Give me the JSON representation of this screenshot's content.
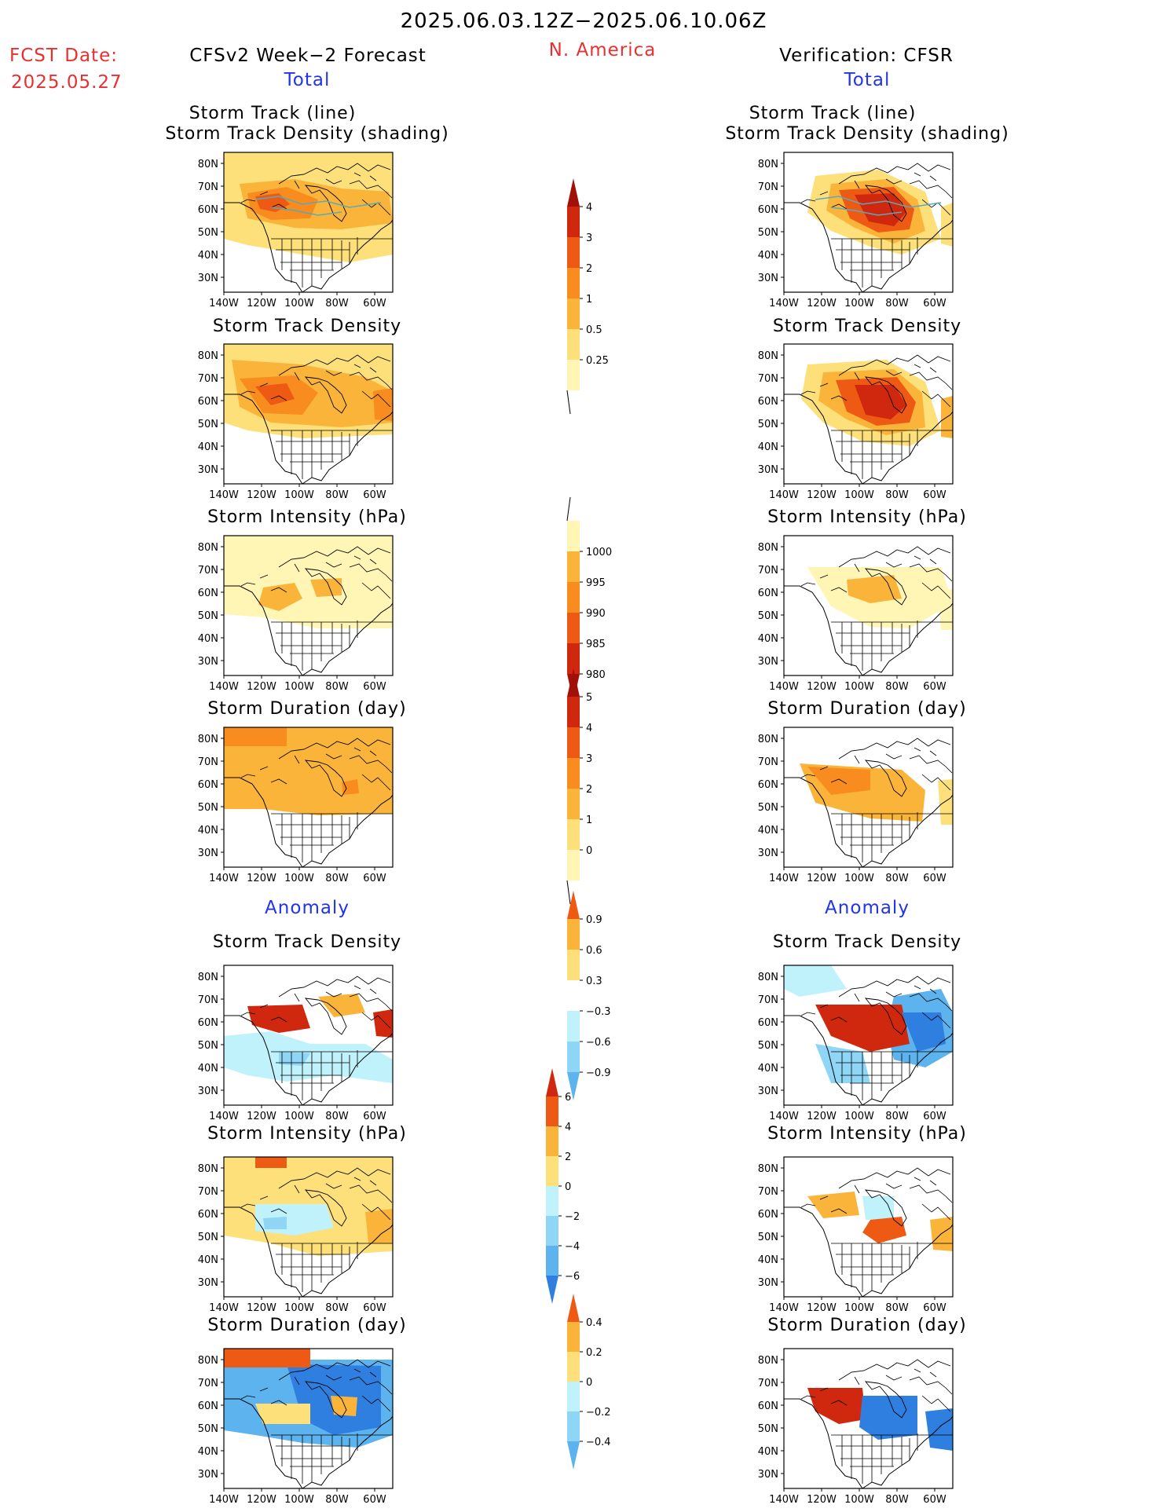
{
  "header": {
    "period": "2025.06.03.12Z−2025.06.10.06Z",
    "fcst_label": "FCST Date:",
    "fcst_date": "2025.05.27",
    "forecast_title": "CFSv2 Week−2 Forecast",
    "region": "N. America",
    "verification_title": "Verification: CFSR"
  },
  "sections": {
    "total_label": "Total",
    "anomaly_label": "Anomaly"
  },
  "panel_titles": {
    "track_line": "Storm Track (line)",
    "track_density_shading": "Storm Track Density (shading)",
    "track_density": "Storm Track Density",
    "intensity": "Storm Intensity (hPa)",
    "duration": "Storm Duration (day)"
  },
  "axes": {
    "lat_ticks": [
      "80N",
      "70N",
      "60N",
      "50N",
      "40N",
      "30N"
    ],
    "lon_ticks": [
      "140W",
      "120W",
      "100W",
      "80W",
      "60W"
    ]
  },
  "colors": {
    "warm": [
      "#fff5b4",
      "#fde07a",
      "#fbb43a",
      "#f88c1e",
      "#ee5a14",
      "#d0280e",
      "#a3100a"
    ],
    "cool": [
      "#bff2fa",
      "#8fd6f6",
      "#5cb3ee",
      "#2f7fe0",
      "#1a55c8"
    ],
    "map_line": "#000000",
    "track_line": "#5aaab8"
  },
  "chart_data": [
    {
      "type": "heatmap",
      "panel": "forecast-total-track",
      "title": "Storm Track (line) / Storm Track Density (shading)",
      "xlabel": "",
      "ylabel": "",
      "xlim": [
        -140,
        -50
      ],
      "ylim": [
        25,
        85
      ]
    },
    {
      "type": "heatmap",
      "panel": "verification-total-track",
      "title": "Storm Track (line) / Storm Track Density (shading)",
      "xlim": [
        -140,
        -50
      ],
      "ylim": [
        25,
        85
      ]
    },
    {
      "type": "heatmap",
      "panel": "forecast-total-density",
      "title": "Storm Track Density",
      "xlim": [
        -140,
        -50
      ],
      "ylim": [
        25,
        85
      ]
    },
    {
      "type": "heatmap",
      "panel": "verification-total-density",
      "title": "Storm Track Density",
      "xlim": [
        -140,
        -50
      ],
      "ylim": [
        25,
        85
      ]
    },
    {
      "type": "heatmap",
      "panel": "forecast-total-intensity",
      "title": "Storm Intensity (hPa)",
      "xlim": [
        -140,
        -50
      ],
      "ylim": [
        25,
        85
      ]
    },
    {
      "type": "heatmap",
      "panel": "verification-total-intensity",
      "title": "Storm Intensity (hPa)",
      "xlim": [
        -140,
        -50
      ],
      "ylim": [
        25,
        85
      ]
    },
    {
      "type": "heatmap",
      "panel": "forecast-total-duration",
      "title": "Storm Duration (day)",
      "xlim": [
        -140,
        -50
      ],
      "ylim": [
        25,
        85
      ]
    },
    {
      "type": "heatmap",
      "panel": "verification-total-duration",
      "title": "Storm Duration (day)",
      "xlim": [
        -140,
        -50
      ],
      "ylim": [
        25,
        85
      ]
    },
    {
      "type": "heatmap",
      "panel": "forecast-anomaly-density",
      "title": "Storm Track Density",
      "xlim": [
        -140,
        -50
      ],
      "ylim": [
        25,
        85
      ]
    },
    {
      "type": "heatmap",
      "panel": "verification-anomaly-density",
      "title": "Storm Track Density",
      "xlim": [
        -140,
        -50
      ],
      "ylim": [
        25,
        85
      ]
    },
    {
      "type": "heatmap",
      "panel": "forecast-anomaly-intensity",
      "title": "Storm Intensity (hPa)",
      "xlim": [
        -140,
        -50
      ],
      "ylim": [
        25,
        85
      ]
    },
    {
      "type": "heatmap",
      "panel": "verification-anomaly-intensity",
      "title": "Storm Intensity (hPa)",
      "xlim": [
        -140,
        -50
      ],
      "ylim": [
        25,
        85
      ]
    },
    {
      "type": "heatmap",
      "panel": "forecast-anomaly-duration",
      "title": "Storm Duration (day)",
      "xlim": [
        -140,
        -50
      ],
      "ylim": [
        25,
        85
      ]
    },
    {
      "type": "heatmap",
      "panel": "verification-anomaly-duration",
      "title": "Storm Duration (day)",
      "xlim": [
        -140,
        -50
      ],
      "ylim": [
        25,
        85
      ]
    }
  ],
  "colorbars": [
    {
      "name": "track-density-total",
      "labels": [
        "4",
        "3",
        "2",
        "1",
        "0.5",
        "0.25"
      ]
    },
    {
      "name": "intensity-total",
      "labels": [
        "1000",
        "995",
        "990",
        "985",
        "980"
      ]
    },
    {
      "name": "duration-total",
      "labels": [
        "5",
        "4",
        "3",
        "2",
        "1",
        "0"
      ]
    },
    {
      "name": "track-density-anomaly",
      "labels": [
        "0.9",
        "0.6",
        "0.3",
        "−0.3",
        "−0.6",
        "−0.9"
      ]
    },
    {
      "name": "intensity-anomaly",
      "labels": [
        "6",
        "4",
        "2",
        "0",
        "−2",
        "−4",
        "−6"
      ]
    },
    {
      "name": "duration-anomaly",
      "labels": [
        "0.4",
        "0.2",
        "0",
        "−0.2",
        "−0.4"
      ]
    }
  ]
}
